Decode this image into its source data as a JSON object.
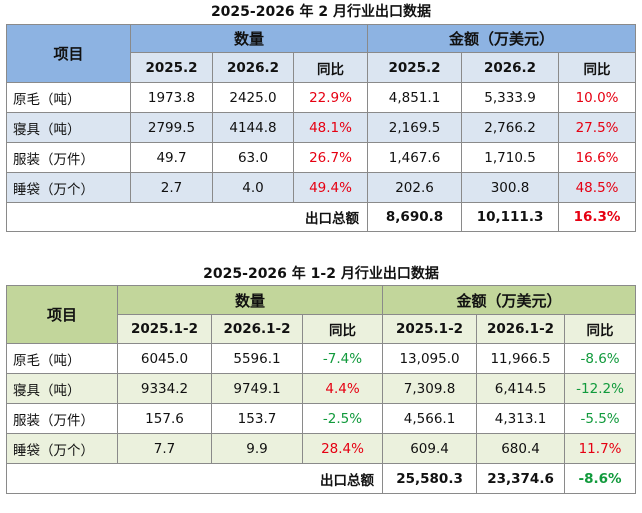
{
  "table1": {
    "title": "2025-2026 年 2 月行业出口数据",
    "item_label": "项目",
    "qty_label": "数量",
    "amount_label": "金额（万美元）",
    "subheaders": [
      "2025.2",
      "2026.2",
      "同比",
      "2025.2",
      "2026.2",
      "同比"
    ],
    "rows": [
      {
        "name": "原毛（吨）",
        "q_prev": "1973.8",
        "q_curr": "2425.0",
        "q_yoy": "22.9%",
        "a_prev": "4,851.1",
        "a_curr": "5,333.9",
        "a_yoy": "10.0%"
      },
      {
        "name": "寝具（吨）",
        "q_prev": "2799.5",
        "q_curr": "4144.8",
        "q_yoy": "48.1%",
        "a_prev": "2,169.5",
        "a_curr": "2,766.2",
        "a_yoy": "27.5%"
      },
      {
        "name": "服装（万件）",
        "q_prev": "49.7",
        "q_curr": "63.0",
        "q_yoy": "26.7%",
        "a_prev": "1,467.6",
        "a_curr": "1,710.5",
        "a_yoy": "16.6%"
      },
      {
        "name": "睡袋（万个）",
        "q_prev": "2.7",
        "q_curr": "4.0",
        "q_yoy": "49.4%",
        "a_prev": "202.6",
        "a_curr": "300.8",
        "a_yoy": "48.5%"
      }
    ],
    "total_label": "出口总额",
    "total_prev": "8,690.8",
    "total_curr": "10,111.3",
    "total_yoy": "16.3%"
  },
  "table2": {
    "title": "2025-2026 年 1-2 月行业出口数据",
    "item_label": "项目",
    "qty_label": "数量",
    "amount_label": "金额（万美元）",
    "subheaders": [
      "2025.1-2",
      "2026.1-2",
      "同比",
      "2025.1-2",
      "2026.1-2",
      "同比"
    ],
    "rows": [
      {
        "name": "原毛（吨）",
        "q_prev": "6045.0",
        "q_curr": "5596.1",
        "q_yoy": "-7.4%",
        "a_prev": "13,095.0",
        "a_curr": "11,966.5",
        "a_yoy": "-8.6%"
      },
      {
        "name": "寝具（吨）",
        "q_prev": "9334.2",
        "q_curr": "9749.1",
        "q_yoy": "4.4%",
        "a_prev": "7,309.8",
        "a_curr": "6,414.5",
        "a_yoy": "-12.2%"
      },
      {
        "name": "服装（万件）",
        "q_prev": "157.6",
        "q_curr": "153.7",
        "q_yoy": "-2.5%",
        "a_prev": "4,566.1",
        "a_curr": "4,313.1",
        "a_yoy": "-5.5%"
      },
      {
        "name": "睡袋（万个）",
        "q_prev": "7.7",
        "q_curr": "9.9",
        "q_yoy": "28.4%",
        "a_prev": "609.4",
        "a_curr": "680.4",
        "a_yoy": "11.7%"
      }
    ],
    "total_label": "出口总额",
    "total_prev": "25,580.3",
    "total_curr": "23,374.6",
    "total_yoy": "-8.6%"
  },
  "colors": {
    "positive": "#e60012",
    "negative": "#119a3c",
    "table1_header": "#8db3e2",
    "table1_shade": "#dbe5f1",
    "table2_header": "#c2d69b",
    "table2_shade": "#ebf1dd"
  }
}
